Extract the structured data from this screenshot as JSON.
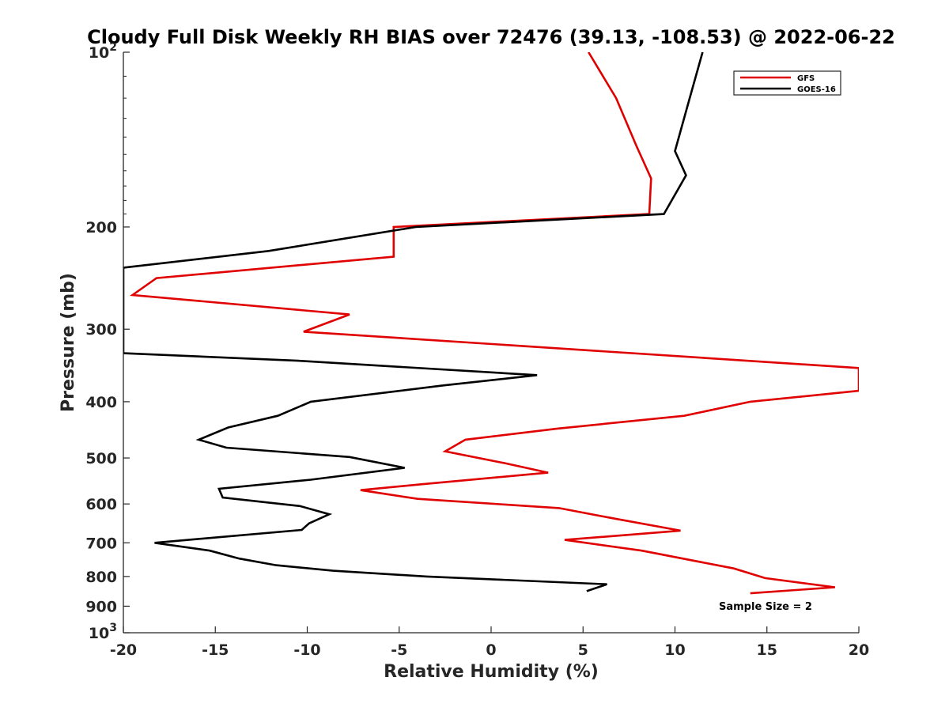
{
  "chart_data": {
    "type": "line",
    "title": "Cloudy Full Disk Weekly RH BIAS over 72476 (39.13, -108.53) @ 2022-06-22",
    "xlabel": "Relative Humidity (%)",
    "ylabel": "Pressure (mb)",
    "xlim": [
      -20,
      20
    ],
    "ylim": [
      100,
      1000
    ],
    "yscale": "log",
    "y_reversed": true,
    "grid": false,
    "legend_position": "top-right",
    "x_ticks": [
      "-20",
      "-15",
      "-10",
      "-5",
      "0",
      "5",
      "10",
      "15",
      "20"
    ],
    "y_ticks": [
      {
        "value": 100,
        "base": "10",
        "exp": "2"
      },
      {
        "value": 200,
        "label": "200"
      },
      {
        "value": 300,
        "label": "300"
      },
      {
        "value": 400,
        "label": "400"
      },
      {
        "value": 500,
        "label": "500"
      },
      {
        "value": 600,
        "label": "600"
      },
      {
        "value": 700,
        "label": "700"
      },
      {
        "value": 800,
        "label": "800"
      },
      {
        "value": 900,
        "label": "900"
      },
      {
        "value": 1000,
        "base": "10",
        "exp": "3"
      }
    ],
    "annotation": "Sample Size = 2",
    "series": [
      {
        "name": "GFS",
        "color": "#e00000",
        "points": [
          {
            "x": 5.3,
            "y": 100
          },
          {
            "x": 6.8,
            "y": 120
          },
          {
            "x": 7.9,
            "y": 145
          },
          {
            "x": 8.7,
            "y": 165
          },
          {
            "x": 8.6,
            "y": 190
          },
          {
            "x": -5.3,
            "y": 200
          },
          {
            "x": -5.3,
            "y": 225
          },
          {
            "x": -18.2,
            "y": 245
          },
          {
            "x": -19.5,
            "y": 262
          },
          {
            "x": -7.7,
            "y": 283
          },
          {
            "x": -10.2,
            "y": 303
          },
          {
            "x": 20,
            "y": 350
          },
          {
            "x": 20,
            "y": 383
          },
          {
            "x": 14.1,
            "y": 400
          },
          {
            "x": 10.5,
            "y": 423
          },
          {
            "x": 3.6,
            "y": 445
          },
          {
            "x": -1.4,
            "y": 465
          },
          {
            "x": -2.5,
            "y": 487
          },
          {
            "x": 0.7,
            "y": 510
          },
          {
            "x": 3.1,
            "y": 530
          },
          {
            "x": -3.8,
            "y": 555
          },
          {
            "x": -7.1,
            "y": 568
          },
          {
            "x": -4.0,
            "y": 588
          },
          {
            "x": 3.7,
            "y": 610
          },
          {
            "x": 6.6,
            "y": 635
          },
          {
            "x": 10.3,
            "y": 667
          },
          {
            "x": 4.0,
            "y": 692
          },
          {
            "x": 8.2,
            "y": 722
          },
          {
            "x": 13.2,
            "y": 775
          },
          {
            "x": 14.9,
            "y": 805
          },
          {
            "x": 18.7,
            "y": 835
          },
          {
            "x": 14.1,
            "y": 855
          }
        ]
      },
      {
        "name": "GOES-16",
        "color": "#000000",
        "points": [
          {
            "x": 11.5,
            "y": 100
          },
          {
            "x": 10.8,
            "y": 120
          },
          {
            "x": 10.0,
            "y": 148
          },
          {
            "x": 10.6,
            "y": 163
          },
          {
            "x": 9.4,
            "y": 190
          },
          {
            "x": -4.1,
            "y": 200
          },
          {
            "x": -12.1,
            "y": 220
          },
          {
            "x": -20,
            "y": 235
          },
          {
            "x": -20,
            "y": 330
          },
          {
            "x": -10.5,
            "y": 340
          },
          {
            "x": 2.5,
            "y": 360
          },
          {
            "x": -2.6,
            "y": 375
          },
          {
            "x": -9.8,
            "y": 400
          },
          {
            "x": -11.6,
            "y": 423
          },
          {
            "x": -14.3,
            "y": 443
          },
          {
            "x": -15.9,
            "y": 465
          },
          {
            "x": -14.4,
            "y": 480
          },
          {
            "x": -7.7,
            "y": 498
          },
          {
            "x": -4.7,
            "y": 520
          },
          {
            "x": -9.8,
            "y": 545
          },
          {
            "x": -14.8,
            "y": 565
          },
          {
            "x": -14.6,
            "y": 585
          },
          {
            "x": -10.4,
            "y": 605
          },
          {
            "x": -8.8,
            "y": 625
          },
          {
            "x": -9.9,
            "y": 648
          },
          {
            "x": -10.3,
            "y": 665
          },
          {
            "x": -18.3,
            "y": 700
          },
          {
            "x": -15.3,
            "y": 722
          },
          {
            "x": -13.7,
            "y": 745
          },
          {
            "x": -11.7,
            "y": 765
          },
          {
            "x": -8.6,
            "y": 782
          },
          {
            "x": -3.5,
            "y": 800
          },
          {
            "x": 6.3,
            "y": 825
          },
          {
            "x": 5.2,
            "y": 848
          }
        ]
      }
    ]
  }
}
